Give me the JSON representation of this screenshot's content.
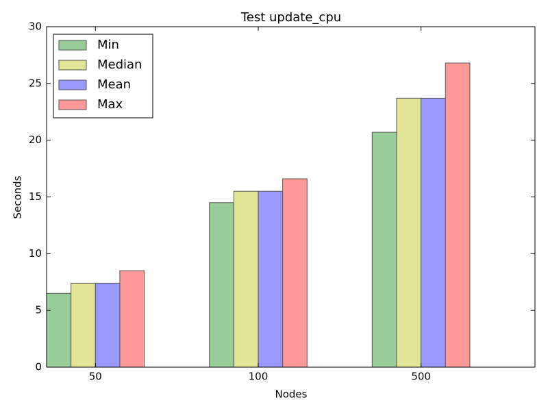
{
  "chart_data": {
    "type": "bar",
    "title": "Test update_cpu",
    "x_label": "Nodes",
    "y_label": "Seconds",
    "categories": [
      "50",
      "100",
      "500"
    ],
    "series": [
      {
        "name": "Min",
        "color": "#98cc98",
        "values": [
          6.5,
          14.5,
          20.7
        ]
      },
      {
        "name": "Median",
        "color": "#e3e596",
        "values": [
          7.4,
          15.5,
          23.7
        ]
      },
      {
        "name": "Mean",
        "color": "#9999ff",
        "values": [
          7.4,
          15.5,
          23.7
        ]
      },
      {
        "name": "Max",
        "color": "#ff9999",
        "values": [
          8.5,
          16.6,
          26.8
        ]
      }
    ],
    "ylim": [
      0,
      30
    ],
    "yticks": [
      0,
      5,
      10,
      15,
      20,
      25,
      30
    ],
    "legend": "upper left"
  }
}
